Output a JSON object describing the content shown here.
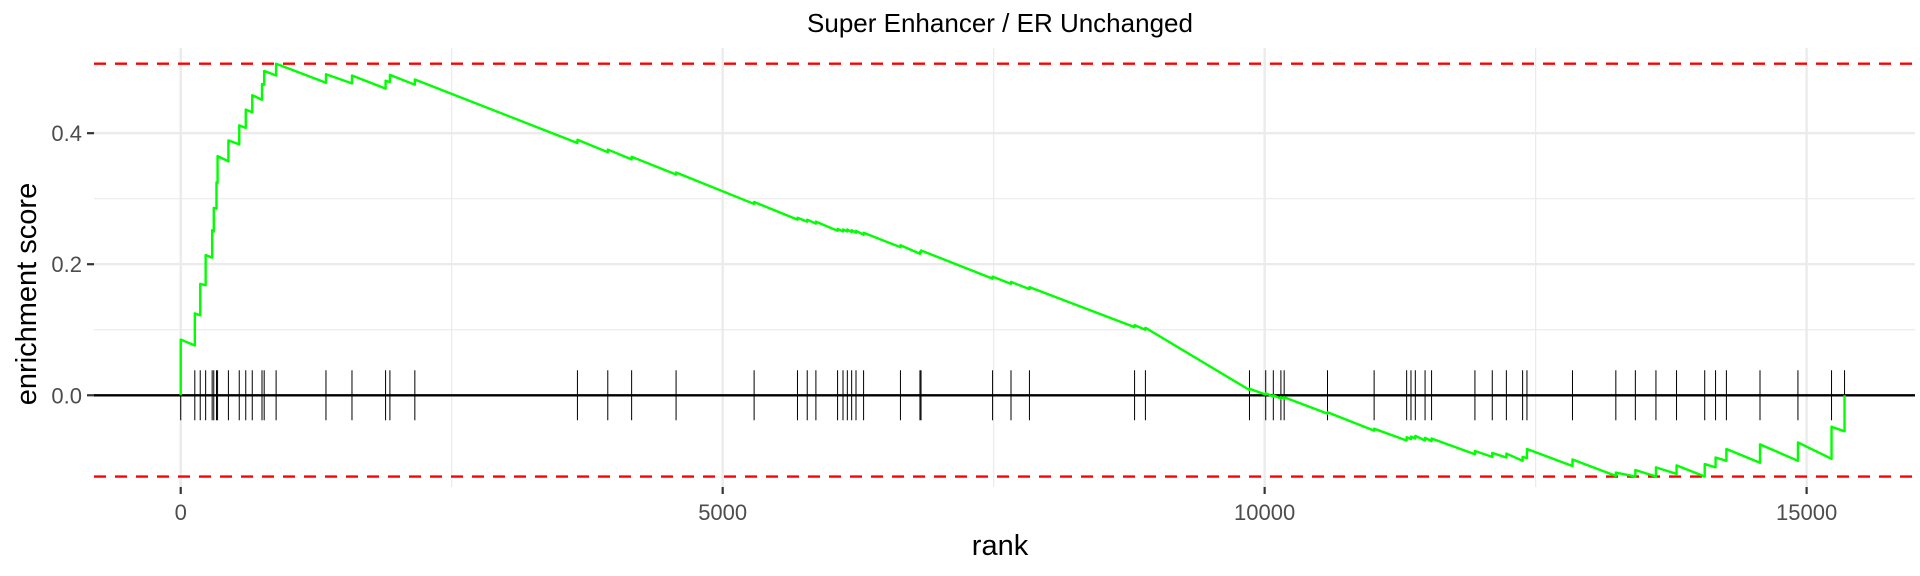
{
  "chart_data": {
    "type": "line",
    "title": "Super Enhancer / ER Unchanged",
    "xlabel": "rank",
    "ylabel": "enrichment score",
    "xlim": [
      -800,
      16000
    ],
    "ylim": [
      -0.14,
      0.53
    ],
    "x_ticks": [
      {
        "value": 0,
        "label": "0"
      },
      {
        "value": 5000,
        "label": "5000"
      },
      {
        "value": 10000,
        "label": "10000"
      },
      {
        "value": 15000,
        "label": "15000"
      }
    ],
    "y_ticks": [
      {
        "value": 0.0,
        "label": "0.0"
      },
      {
        "value": 0.2,
        "label": "0.2"
      },
      {
        "value": 0.4,
        "label": "0.4"
      }
    ],
    "grid": true,
    "colors": {
      "curve": "#00ff00",
      "threshold": "#ff0000",
      "hit": "#000000",
      "grid": "#ebebeb",
      "baseline": "#000000"
    },
    "thresholds": [
      0.506,
      -0.124
    ],
    "hits": [
      0,
      130,
      180,
      230,
      290,
      305,
      330,
      340,
      440,
      540,
      600,
      660,
      750,
      770,
      880,
      1340,
      1580,
      1890,
      1930,
      2160,
      3660,
      3940,
      4160,
      4570,
      5290,
      5690,
      5780,
      5860,
      6060,
      6110,
      6150,
      6190,
      6230,
      6300,
      6640,
      6820,
      6830,
      7490,
      7660,
      7830,
      8800,
      8900,
      9860,
      10010,
      10080,
      10150,
      10180,
      10580,
      11010,
      11310,
      11350,
      11390,
      11480,
      11540,
      11940,
      12100,
      12230,
      12380,
      12420,
      12840,
      13240,
      13420,
      13610,
      13800,
      14060,
      14160,
      14260,
      14570,
      14920,
      15230,
      15350
    ],
    "curve": [
      {
        "x": 0,
        "y": 0.0
      },
      {
        "x": 0,
        "y": 0.085
      },
      {
        "x": 130,
        "y": 0.076
      },
      {
        "x": 130,
        "y": 0.125
      },
      {
        "x": 180,
        "y": 0.122
      },
      {
        "x": 180,
        "y": 0.17
      },
      {
        "x": 230,
        "y": 0.168
      },
      {
        "x": 230,
        "y": 0.214
      },
      {
        "x": 290,
        "y": 0.21
      },
      {
        "x": 290,
        "y": 0.252
      },
      {
        "x": 305,
        "y": 0.25
      },
      {
        "x": 305,
        "y": 0.286
      },
      {
        "x": 330,
        "y": 0.285
      },
      {
        "x": 330,
        "y": 0.325
      },
      {
        "x": 340,
        "y": 0.324
      },
      {
        "x": 340,
        "y": 0.365
      },
      {
        "x": 440,
        "y": 0.357
      },
      {
        "x": 440,
        "y": 0.389
      },
      {
        "x": 540,
        "y": 0.383
      },
      {
        "x": 540,
        "y": 0.412
      },
      {
        "x": 600,
        "y": 0.408
      },
      {
        "x": 600,
        "y": 0.436
      },
      {
        "x": 660,
        "y": 0.432
      },
      {
        "x": 660,
        "y": 0.458
      },
      {
        "x": 750,
        "y": 0.451
      },
      {
        "x": 750,
        "y": 0.475
      },
      {
        "x": 770,
        "y": 0.474
      },
      {
        "x": 770,
        "y": 0.495
      },
      {
        "x": 880,
        "y": 0.488
      },
      {
        "x": 880,
        "y": 0.506
      },
      {
        "x": 1340,
        "y": 0.477
      },
      {
        "x": 1340,
        "y": 0.49
      },
      {
        "x": 1580,
        "y": 0.476
      },
      {
        "x": 1580,
        "y": 0.488
      },
      {
        "x": 1890,
        "y": 0.468
      },
      {
        "x": 1890,
        "y": 0.48
      },
      {
        "x": 1930,
        "y": 0.478
      },
      {
        "x": 1930,
        "y": 0.489
      },
      {
        "x": 2160,
        "y": 0.474
      },
      {
        "x": 2160,
        "y": 0.482
      },
      {
        "x": 3660,
        "y": 0.385
      },
      {
        "x": 3660,
        "y": 0.39
      },
      {
        "x": 3940,
        "y": 0.371
      },
      {
        "x": 3940,
        "y": 0.375
      },
      {
        "x": 4160,
        "y": 0.36
      },
      {
        "x": 4160,
        "y": 0.364
      },
      {
        "x": 4570,
        "y": 0.337
      },
      {
        "x": 4570,
        "y": 0.34
      },
      {
        "x": 5290,
        "y": 0.292
      },
      {
        "x": 5290,
        "y": 0.295
      },
      {
        "x": 5690,
        "y": 0.268
      },
      {
        "x": 5690,
        "y": 0.271
      },
      {
        "x": 5780,
        "y": 0.265
      },
      {
        "x": 5780,
        "y": 0.268
      },
      {
        "x": 5860,
        "y": 0.262
      },
      {
        "x": 5860,
        "y": 0.265
      },
      {
        "x": 6060,
        "y": 0.251
      },
      {
        "x": 6060,
        "y": 0.254
      },
      {
        "x": 6110,
        "y": 0.25
      },
      {
        "x": 6110,
        "y": 0.253
      },
      {
        "x": 6150,
        "y": 0.25
      },
      {
        "x": 6150,
        "y": 0.253
      },
      {
        "x": 6190,
        "y": 0.249
      },
      {
        "x": 6190,
        "y": 0.252
      },
      {
        "x": 6230,
        "y": 0.248
      },
      {
        "x": 6230,
        "y": 0.251
      },
      {
        "x": 6300,
        "y": 0.245
      },
      {
        "x": 6300,
        "y": 0.248
      },
      {
        "x": 6640,
        "y": 0.226
      },
      {
        "x": 6640,
        "y": 0.229
      },
      {
        "x": 6820,
        "y": 0.216
      },
      {
        "x": 6820,
        "y": 0.219
      },
      {
        "x": 6830,
        "y": 0.218
      },
      {
        "x": 6830,
        "y": 0.221
      },
      {
        "x": 7490,
        "y": 0.178
      },
      {
        "x": 7490,
        "y": 0.181
      },
      {
        "x": 7660,
        "y": 0.17
      },
      {
        "x": 7660,
        "y": 0.173
      },
      {
        "x": 7830,
        "y": 0.162
      },
      {
        "x": 7830,
        "y": 0.165
      },
      {
        "x": 8800,
        "y": 0.104
      },
      {
        "x": 8800,
        "y": 0.107
      },
      {
        "x": 8900,
        "y": 0.1
      },
      {
        "x": 8900,
        "y": 0.103
      },
      {
        "x": 9860,
        "y": 0.008
      },
      {
        "x": 9860,
        "y": 0.01
      },
      {
        "x": 10010,
        "y": 0.001
      },
      {
        "x": 10010,
        "y": 0.003
      },
      {
        "x": 10080,
        "y": -0.002
      },
      {
        "x": 10080,
        "y": 0.0
      },
      {
        "x": 10150,
        "y": -0.005
      },
      {
        "x": 10150,
        "y": -0.003
      },
      {
        "x": 10180,
        "y": -0.005
      },
      {
        "x": 10180,
        "y": -0.003
      },
      {
        "x": 10580,
        "y": -0.028
      },
      {
        "x": 10580,
        "y": -0.026
      },
      {
        "x": 11010,
        "y": -0.054
      },
      {
        "x": 11010,
        "y": -0.051
      },
      {
        "x": 11310,
        "y": -0.069
      },
      {
        "x": 11310,
        "y": -0.064
      },
      {
        "x": 11350,
        "y": -0.067
      },
      {
        "x": 11350,
        "y": -0.063
      },
      {
        "x": 11390,
        "y": -0.066
      },
      {
        "x": 11390,
        "y": -0.062
      },
      {
        "x": 11480,
        "y": -0.069
      },
      {
        "x": 11480,
        "y": -0.065
      },
      {
        "x": 11540,
        "y": -0.07
      },
      {
        "x": 11540,
        "y": -0.066
      },
      {
        "x": 11940,
        "y": -0.09
      },
      {
        "x": 11940,
        "y": -0.085
      },
      {
        "x": 12100,
        "y": -0.094
      },
      {
        "x": 12100,
        "y": -0.088
      },
      {
        "x": 12230,
        "y": -0.095
      },
      {
        "x": 12230,
        "y": -0.089
      },
      {
        "x": 12380,
        "y": -0.1
      },
      {
        "x": 12380,
        "y": -0.094
      },
      {
        "x": 12420,
        "y": -0.096
      },
      {
        "x": 12420,
        "y": -0.082
      },
      {
        "x": 12840,
        "y": -0.108
      },
      {
        "x": 12840,
        "y": -0.098
      },
      {
        "x": 13240,
        "y": -0.123
      },
      {
        "x": 13240,
        "y": -0.118
      },
      {
        "x": 13420,
        "y": -0.124
      },
      {
        "x": 13420,
        "y": -0.114
      },
      {
        "x": 13610,
        "y": -0.124
      },
      {
        "x": 13610,
        "y": -0.11
      },
      {
        "x": 13800,
        "y": -0.12
      },
      {
        "x": 13800,
        "y": -0.107
      },
      {
        "x": 14060,
        "y": -0.124
      },
      {
        "x": 14060,
        "y": -0.105
      },
      {
        "x": 14160,
        "y": -0.11
      },
      {
        "x": 14160,
        "y": -0.095
      },
      {
        "x": 14260,
        "y": -0.1
      },
      {
        "x": 14260,
        "y": -0.082
      },
      {
        "x": 14570,
        "y": -0.103
      },
      {
        "x": 14570,
        "y": -0.075
      },
      {
        "x": 14920,
        "y": -0.1
      },
      {
        "x": 14920,
        "y": -0.072
      },
      {
        "x": 15230,
        "y": -0.097
      },
      {
        "x": 15230,
        "y": -0.048
      },
      {
        "x": 15350,
        "y": -0.055
      },
      {
        "x": 15350,
        "y": 0.0
      }
    ]
  }
}
